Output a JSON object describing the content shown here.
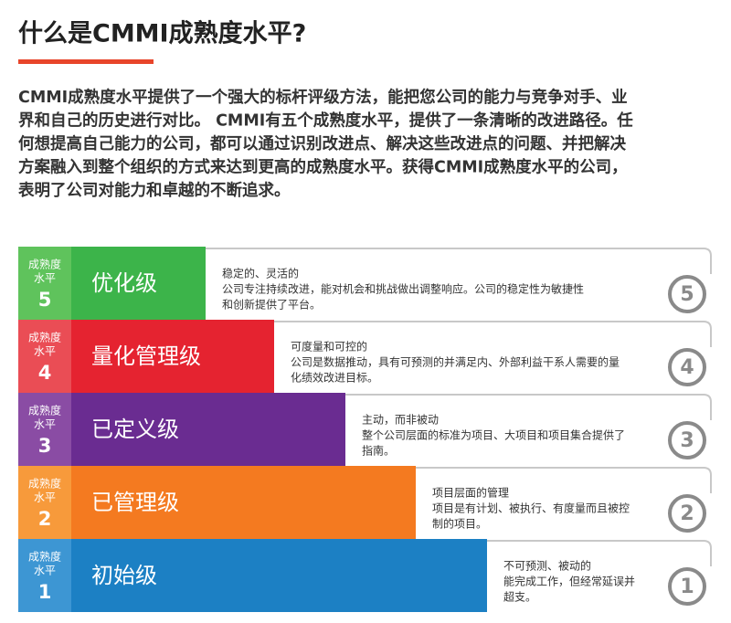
{
  "header": {
    "title": "什么是CMMI成熟度水平?"
  },
  "intro": {
    "lines": [
      "CMMI成熟度水平提供了一个强大的标杆评级方法，能把您公司的能力与竞争对手、业",
      "界和自己的历史进行对比。 CMMI有五个成熟度水平，提供了一条清晰的改进路径。任",
      "何想提高自己能力的公司，都可以通过识别改进点、解决这些改进点的问题、并把解决",
      "方案融入到整个组织的方式来达到更高的成熟度水平。获得CMMI成熟度水平的公司，",
      "表明了公司对能力和卓越的不断追求。"
    ]
  },
  "levels": [
    {
      "badge": [
        "成熟度",
        "水平"
      ],
      "number": "5",
      "name": "优化级",
      "description": [
        "稳定的、灵活的",
        "公司专注持续改进，能对机会和挑战做出调整响应。公司的稳定性为敏捷性",
        "和创新提供了平台。"
      ]
    },
    {
      "badge": [
        "成熟度",
        "水平"
      ],
      "number": "4",
      "name": "量化管理级",
      "description": [
        "可度量和可控的",
        "公司是数据推动，具有可预测的并满足内、外部利益干系人需要的量",
        "化绩效改进目标。"
      ]
    },
    {
      "badge": [
        "成熟度",
        "水平"
      ],
      "number": "3",
      "name": "已定义级",
      "description": [
        "主动，而非被动",
        "整个公司层面的标准为项目、大项目和项目集合提供了",
        "指南。"
      ]
    },
    {
      "badge": [
        "成熟度",
        "水平"
      ],
      "number": "2",
      "name": "已管理级",
      "description": [
        "项目层面的管理",
        "项目是有计划、被执行、有度量而且被控",
        "制的项目。"
      ]
    },
    {
      "badge": [
        "成熟度",
        "水平"
      ],
      "number": "1",
      "name": "初始级",
      "description": [
        "不可预测、被动的",
        "能完成工作，但经常延误并",
        "超支。"
      ]
    }
  ]
}
